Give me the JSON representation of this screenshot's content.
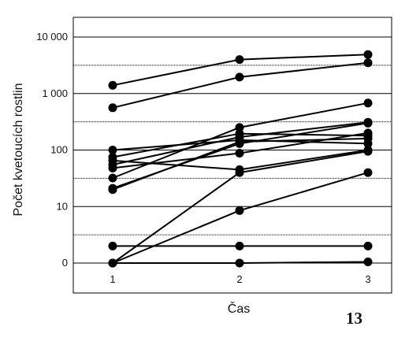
{
  "chart_data": {
    "type": "line",
    "title": "",
    "xlabel": "Čas",
    "ylabel": "Počet kvetoucích rostlin",
    "figure_number": "13",
    "y_scale": "log",
    "y_tick_labels": [
      "0",
      "10",
      "100",
      "1 000",
      "10 000"
    ],
    "y_tick_values": [
      1,
      10,
      100,
      1000,
      10000
    ],
    "x_categories": [
      "1",
      "2",
      "3"
    ],
    "x": [
      1,
      2,
      3
    ],
    "ylim": [
      1,
      10000
    ],
    "grid": true,
    "legend": "none",
    "line_color": "#000000",
    "series": [
      {
        "values": [
          1400,
          4000,
          4900
        ]
      },
      {
        "values": [
          560,
          1950,
          3500
        ]
      },
      {
        "values": [
          100,
          150,
          130
        ]
      },
      {
        "values": [
          75,
          195,
          180
        ]
      },
      {
        "values": [
          65,
          45,
          100
        ]
      },
      {
        "values": [
          55,
          170,
          310
        ]
      },
      {
        "values": [
          48,
          88,
          200
        ]
      },
      {
        "values": [
          32,
          250,
          680
        ]
      },
      {
        "values": [
          21,
          130,
          300
        ]
      },
      {
        "values": [
          20,
          140,
          160
        ]
      },
      {
        "values": [
          1,
          40,
          95
        ]
      },
      {
        "values": [
          1,
          8.5,
          40
        ]
      },
      {
        "values": [
          2,
          2,
          2
        ]
      },
      {
        "values": [
          1,
          1,
          1.05
        ]
      }
    ]
  }
}
